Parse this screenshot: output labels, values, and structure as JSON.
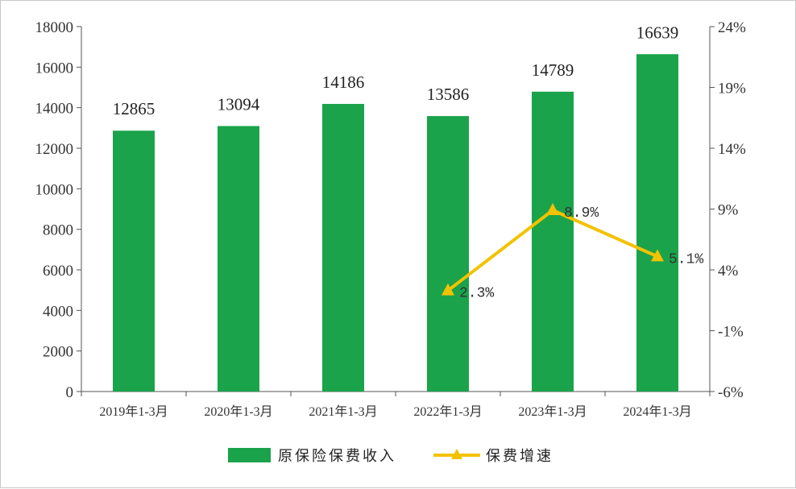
{
  "chart_data": {
    "type": "bar",
    "categories": [
      "2019年1-3月",
      "2020年1-3月",
      "2021年1-3月",
      "2022年1-3月",
      "2023年1-3月",
      "2024年1-3月"
    ],
    "series": [
      {
        "name": "原保险保费收入",
        "type": "bar",
        "axis": "left",
        "color": "#1aa34a",
        "values": [
          12865,
          13094,
          14186,
          13586,
          14789,
          16639
        ],
        "labels": [
          "12865",
          "13094",
          "14186",
          "13586",
          "14789",
          "16639"
        ]
      },
      {
        "name": "保费增速",
        "type": "line",
        "axis": "right",
        "color": "#f2c200",
        "marker": "triangle",
        "values": [
          null,
          null,
          null,
          2.3,
          8.9,
          5.1
        ],
        "labels": [
          "",
          "",
          "",
          "2.3%",
          "8.9%",
          "5.1%"
        ]
      }
    ],
    "y_left": {
      "min": 0,
      "max": 18000,
      "step": 2000,
      "ticks": [
        "0",
        "2000",
        "4000",
        "6000",
        "8000",
        "10000",
        "12000",
        "14000",
        "16000",
        "18000"
      ]
    },
    "y_right": {
      "min": -6,
      "max": 24,
      "step": 5,
      "ticks": [
        "-6%",
        "-1%",
        "4%",
        "9%",
        "14%",
        "19%",
        "24%"
      ]
    },
    "grid": false,
    "legend_position": "bottom"
  }
}
